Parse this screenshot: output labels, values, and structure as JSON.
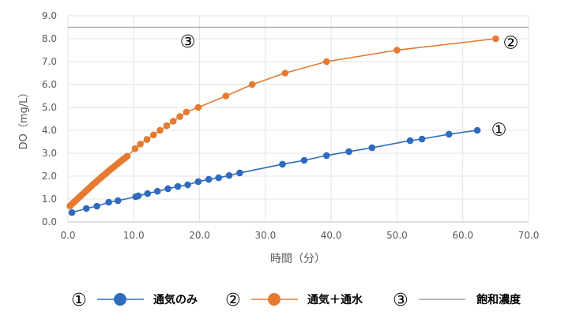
{
  "chart_data": {
    "type": "line",
    "title": "",
    "xlabel": "時間（分）",
    "ylabel": "DO（mg/L）",
    "xlim": [
      0,
      70
    ],
    "ylim": [
      0,
      9
    ],
    "x_ticks": [
      "0.0",
      "10.0",
      "20.0",
      "30.0",
      "40.0",
      "50.0",
      "60.0",
      "70.0"
    ],
    "y_ticks": [
      "0.0",
      "1.0",
      "2.0",
      "3.0",
      "4.0",
      "5.0",
      "6.0",
      "7.0",
      "8.0",
      "9.0"
    ],
    "grid": true,
    "legend_position": "bottom",
    "series": [
      {
        "name": "通気のみ",
        "marker": "①",
        "color": "#2e6bbf",
        "x": [
          0.6,
          2.8,
          4.4,
          6.2,
          7.6,
          10.3,
          10.7,
          12.1,
          13.6,
          15.2,
          16.7,
          18.2,
          19.8,
          21.4,
          22.9,
          24.5,
          26.1,
          32.6,
          35.9,
          39.3,
          42.7,
          46.2,
          52.0,
          53.8,
          57.9,
          62.2
        ],
        "y": [
          0.41,
          0.59,
          0.69,
          0.86,
          0.93,
          1.1,
          1.14,
          1.24,
          1.34,
          1.45,
          1.55,
          1.62,
          1.76,
          1.86,
          1.93,
          2.03,
          2.14,
          2.52,
          2.69,
          2.9,
          3.07,
          3.24,
          3.55,
          3.62,
          3.83,
          4.0
        ]
      },
      {
        "name": "通気＋通水",
        "marker": "②",
        "color": "#e57a30",
        "x": [
          0.3,
          0.6,
          0.9,
          1.2,
          1.5,
          1.8,
          2.1,
          2.4,
          2.7,
          3.0,
          3.3,
          3.6,
          3.9,
          4.2,
          4.5,
          4.8,
          5.1,
          5.4,
          5.7,
          6.0,
          6.3,
          6.6,
          6.9,
          7.2,
          7.5,
          7.8,
          8.1,
          8.4,
          8.7,
          9.0,
          10.2,
          11.0,
          12.0,
          13.0,
          14.0,
          15.0,
          16.0,
          17.0,
          18.0,
          19.8,
          24.0,
          28.0,
          33.0,
          39.3,
          50.0,
          65.0
        ],
        "y": [
          0.7,
          0.78,
          0.86,
          0.94,
          1.02,
          1.1,
          1.18,
          1.26,
          1.34,
          1.42,
          1.5,
          1.58,
          1.66,
          1.73,
          1.81,
          1.88,
          1.96,
          2.03,
          2.1,
          2.18,
          2.25,
          2.32,
          2.39,
          2.46,
          2.53,
          2.6,
          2.67,
          2.74,
          2.8,
          2.87,
          3.2,
          3.4,
          3.6,
          3.8,
          4.0,
          4.2,
          4.4,
          4.6,
          4.8,
          5.0,
          5.5,
          6.0,
          6.5,
          7.0,
          7.5,
          8.0
        ]
      },
      {
        "name": "飽和濃度",
        "marker": "③",
        "color": "#a0a0a0",
        "x": [
          0,
          70
        ],
        "y": [
          8.5,
          8.5
        ],
        "no_markers": true
      }
    ],
    "annotations": [
      {
        "text": "③",
        "x": 18.2,
        "y": 7.9
      },
      {
        "text": "②",
        "x": 67.3,
        "y": 7.85
      },
      {
        "text": "①",
        "x": 65.5,
        "y": 4.05
      }
    ]
  }
}
